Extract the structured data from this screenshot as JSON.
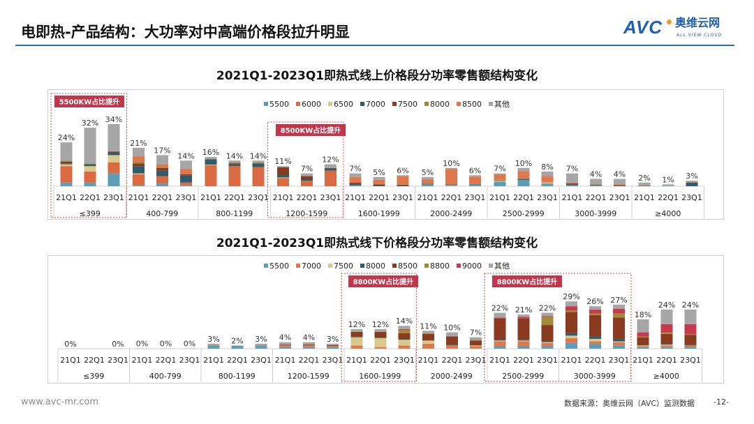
{
  "header": {
    "title": "电即热-产品结构：大功率对中高端价格段拉升明显",
    "logo": {
      "mark": "AVC",
      "cn": "奥维云网",
      "en": "ALL VIEW CLOUD"
    }
  },
  "footer": {
    "url": "www.avc-mr.com",
    "source": "数据来源：奥维云网（AVC）监测数据",
    "page": "-12-"
  },
  "chart_data": [
    {
      "type": "bar",
      "stacked": true,
      "title": "2021Q1-2023Q1即热式线上价格段分功率零售额结构变化",
      "legend_position": "top-right",
      "groups": [
        "≤399",
        "400-799",
        "800-1199",
        "1200-1599",
        "1600-1999",
        "2000-2499",
        "2500-2999",
        "3000-3999",
        "≥4000"
      ],
      "periods": [
        "21Q1",
        "22Q1",
        "23Q1"
      ],
      "totals": [
        [
          "24%",
          "32%",
          "34%"
        ],
        [
          "21%",
          "17%",
          "14%"
        ],
        [
          "16%",
          "14%",
          "14%"
        ],
        [
          "11%",
          "7%",
          "12%"
        ],
        [
          "7%",
          "5%",
          "6%"
        ],
        [
          "5%",
          "10%",
          "6%"
        ],
        [
          "7%",
          "10%",
          "8%"
        ],
        [
          "7%",
          "4%",
          "4%"
        ],
        [
          "2%",
          "1%",
          "3%"
        ]
      ],
      "series": [
        {
          "name": "5500",
          "color": "#5e9db6",
          "values": [
            [
              2,
              2,
              7
            ],
            [
              0.5,
              1.5,
              0.5
            ],
            [
              0,
              0,
              0
            ],
            [
              0,
              0,
              0
            ],
            [
              0.5,
              0,
              0
            ],
            [
              1,
              0.3,
              1
            ],
            [
              2.5,
              3.5,
              1.5
            ],
            [
              0.5,
              0.5,
              0
            ],
            [
              0,
              0.3,
              0
            ]
          ]
        },
        {
          "name": "6000",
          "color": "#d96a42",
          "values": [
            [
              9,
              6,
              6
            ],
            [
              6,
              4,
              1.5
            ],
            [
              11.5,
              11,
              10.5
            ],
            [
              4.5,
              3,
              8.5
            ],
            [
              0,
              0,
              0
            ],
            [
              0,
              0,
              0
            ],
            [
              0,
              0,
              0
            ],
            [
              0,
              0,
              0
            ],
            [
              0,
              0,
              0
            ]
          ]
        },
        {
          "name": "6500",
          "color": "#d9c98c",
          "values": [
            [
              1,
              3,
              4
            ],
            [
              0.5,
              0,
              0
            ],
            [
              0.3,
              0,
              0
            ],
            [
              0.3,
              0,
              0
            ],
            [
              0,
              0,
              0
            ],
            [
              0,
              0.3,
              0
            ],
            [
              0.5,
              0,
              0.5
            ],
            [
              0,
              0,
              0
            ],
            [
              0,
              0,
              0
            ]
          ]
        },
        {
          "name": "7000",
          "color": "#2f5b6c",
          "values": [
            [
              0.5,
              1,
              1.5
            ],
            [
              4,
              3,
              4
            ],
            [
              3,
              1,
              2
            ],
            [
              1.5,
              1,
              1.2
            ],
            [
              0.7,
              0.6,
              0.5
            ],
            [
              0.3,
              0.4,
              0.2
            ],
            [
              0.2,
              0.5,
              0
            ],
            [
              0.5,
              0.3,
              0.3
            ],
            [
              0,
              0,
              2
            ]
          ]
        },
        {
          "name": "7500",
          "color": "#8a3a1f",
          "values": [
            [
              1,
              0,
              0.5
            ],
            [
              1.5,
              1.5,
              0.5
            ],
            [
              0,
              0.5,
              0
            ],
            [
              4,
              1.5,
              0.3
            ],
            [
              0.8,
              0.4,
              0.3
            ],
            [
              0,
              0,
              0
            ],
            [
              0,
              0,
              0
            ],
            [
              0.5,
              0,
              0.3
            ],
            [
              0.3,
              0,
              0
            ]
          ]
        },
        {
          "name": "8000",
          "color": "#a08b3a",
          "values": [
            [
              0.5,
              0.5,
              0
            ],
            [
              1,
              0.5,
              0
            ],
            [
              0,
              0.5,
              0.5
            ],
            [
              0,
              0,
              0
            ],
            [
              0,
              0,
              0
            ],
            [
              0,
              0,
              0
            ],
            [
              0.3,
              0.3,
              0
            ],
            [
              0,
              0,
              0
            ],
            [
              0,
              0,
              0
            ]
          ]
        },
        {
          "name": "8500",
          "color": "#e0784d",
          "values": [
            [
              0,
              0,
              0
            ],
            [
              3,
              1.5,
              3
            ],
            [
              0,
              0,
              0
            ],
            [
              0,
              0,
              0
            ],
            [
              3,
              2.5,
              4.7
            ],
            [
              2.5,
              8.5,
              4
            ],
            [
              3,
              4,
              3.5
            ],
            [
              0.5,
              0.5,
              0.5
            ],
            [
              0,
              0,
              0.3
            ]
          ]
        },
        {
          "name": "其他",
          "color": "#a6a6a6",
          "values": [
            [
              10,
              19.5,
              15
            ],
            [
              4.5,
              5,
              4.5
            ],
            [
              1.2,
              1,
              1
            ],
            [
              0.7,
              1.5,
              2
            ],
            [
              2,
              1.5,
              0.5
            ],
            [
              1.2,
              0.5,
              0.8
            ],
            [
              0.5,
              1.7,
              2.5
            ],
            [
              5,
              2.7,
              2.9
            ],
            [
              1.7,
              0.7,
              0.7
            ]
          ]
        }
      ],
      "annotations": [
        {
          "text": "5500KW占比提升",
          "group": "≤399"
        },
        {
          "text": "8500KW占比提升",
          "group": "1200-1599"
        }
      ]
    },
    {
      "type": "bar",
      "stacked": true,
      "title": "2021Q1-2023Q1即热式线下价格段分功率零售额结构变化",
      "legend_position": "top-right",
      "groups": [
        "≤399",
        "400-799",
        "800-1199",
        "1200-1599",
        "1600-1999",
        "2000-2499",
        "2500-2999",
        "3000-3999",
        "≥4000"
      ],
      "periods": [
        "21Q1",
        "22Q1",
        "23Q1"
      ],
      "totals": [
        [
          "0%",
          "",
          "0%"
        ],
        [
          "0%",
          "0%",
          "0%"
        ],
        [
          "3%",
          "2%",
          "3%"
        ],
        [
          "4%",
          "4%",
          "3%"
        ],
        [
          "12%",
          "12%",
          "14%"
        ],
        [
          "11%",
          "10%",
          "7%"
        ],
        [
          "22%",
          "21%",
          "22%"
        ],
        [
          "29%",
          "26%",
          "27%"
        ],
        [
          "18%",
          "24%",
          "24%"
        ]
      ],
      "series": [
        {
          "name": "5500",
          "color": "#5e9db6",
          "values": [
            [
              0,
              0,
              0
            ],
            [
              0,
              0,
              0
            ],
            [
              2,
              1.8,
              2
            ],
            [
              1,
              1,
              1
            ],
            [
              0,
              0,
              0
            ],
            [
              0,
              0,
              0
            ],
            [
              1.5,
              1.5,
              1.5
            ],
            [
              3.5,
              3,
              2
            ],
            [
              1,
              1,
              1
            ]
          ]
        },
        {
          "name": "7000",
          "color": "#e0784d",
          "values": [
            [
              0,
              0,
              0
            ],
            [
              0,
              0,
              0
            ],
            [
              0.3,
              0,
              0.3
            ],
            [
              1,
              1,
              0.7
            ],
            [
              2,
              1,
              2
            ],
            [
              3,
              2,
              1.5
            ],
            [
              3,
              3,
              2
            ],
            [
              3,
              1.5,
              2
            ],
            [
              0.5,
              1,
              1
            ]
          ]
        },
        {
          "name": "7500",
          "color": "#d9c98c",
          "values": [
            [
              0,
              0,
              0
            ],
            [
              0,
              0,
              0
            ],
            [
              0,
              0,
              0
            ],
            [
              0,
              0,
              0
            ],
            [
              5,
              5.5,
              3.5
            ],
            [
              2,
              0,
              0.5
            ],
            [
              0.5,
              0.5,
              0.5
            ],
            [
              1.5,
              1.5,
              0.5
            ],
            [
              0.5,
              0.5,
              0
            ]
          ]
        },
        {
          "name": "8000",
          "color": "#2f5b6c",
          "values": [
            [
              0,
              0,
              0
            ],
            [
              0,
              0,
              0
            ],
            [
              0,
              0,
              0
            ],
            [
              0,
              0,
              0
            ],
            [
              0.3,
              0.3,
              0.5
            ],
            [
              0,
              0.5,
              0
            ],
            [
              0.5,
              0.5,
              0.5
            ],
            [
              1.5,
              1.5,
              1.5
            ],
            [
              0,
              0.5,
              0.5
            ]
          ]
        },
        {
          "name": "8500",
          "color": "#8a3a1f",
          "values": [
            [
              0,
              0,
              0
            ],
            [
              0,
              0,
              0
            ],
            [
              0,
              0,
              0
            ],
            [
              0.5,
              0.5,
              0.5
            ],
            [
              3,
              3.5,
              3.5
            ],
            [
              4,
              5,
              3
            ],
            [
              13,
              13,
              10
            ],
            [
              13,
              13,
              13
            ],
            [
              5,
              6,
              6
            ]
          ]
        },
        {
          "name": "8800",
          "color": "#a08b3a",
          "values": [
            [
              0,
              0,
              0
            ],
            [
              0,
              0,
              0
            ],
            [
              0,
              0,
              0
            ],
            [
              0,
              0.3,
              0
            ],
            [
              0.3,
              0.3,
              2
            ],
            [
              0.5,
              0,
              0.5
            ],
            [
              0,
              0,
              5
            ],
            [
              1,
              1,
              2.5
            ],
            [
              0.5,
              1,
              0.5
            ]
          ]
        },
        {
          "name": "9000",
          "color": "#c8394b",
          "values": [
            [
              0,
              0,
              0
            ],
            [
              0,
              0,
              0
            ],
            [
              0,
              0,
              0
            ],
            [
              0,
              0,
              0
            ],
            [
              0,
              0,
              0.5
            ],
            [
              0,
              0,
              0
            ],
            [
              0.5,
              1,
              0.5
            ],
            [
              2.5,
              2.5,
              3
            ],
            [
              2.5,
              5,
              6
            ]
          ]
        },
        {
          "name": "其他",
          "color": "#a6a6a6",
          "values": [
            [
              0.1,
              0,
              0.1
            ],
            [
              0.2,
              0.2,
              0.2
            ],
            [
              0.7,
              0.2,
              0.7
            ],
            [
              1.5,
              1.2,
              0.8
            ],
            [
              1.4,
              1.4,
              2
            ],
            [
              1.5,
              2.5,
              1.5
            ],
            [
              3,
              1.5,
              2
            ],
            [
              3,
              2,
              2.5
            ],
            [
              8,
              9,
              9
            ]
          ]
        }
      ],
      "annotations": [
        {
          "text": "8800KW占比提升",
          "group": "1600-1999"
        },
        {
          "text": "8800KW占比提升",
          "group": "2500-2999 / 3000-3999"
        }
      ]
    }
  ]
}
